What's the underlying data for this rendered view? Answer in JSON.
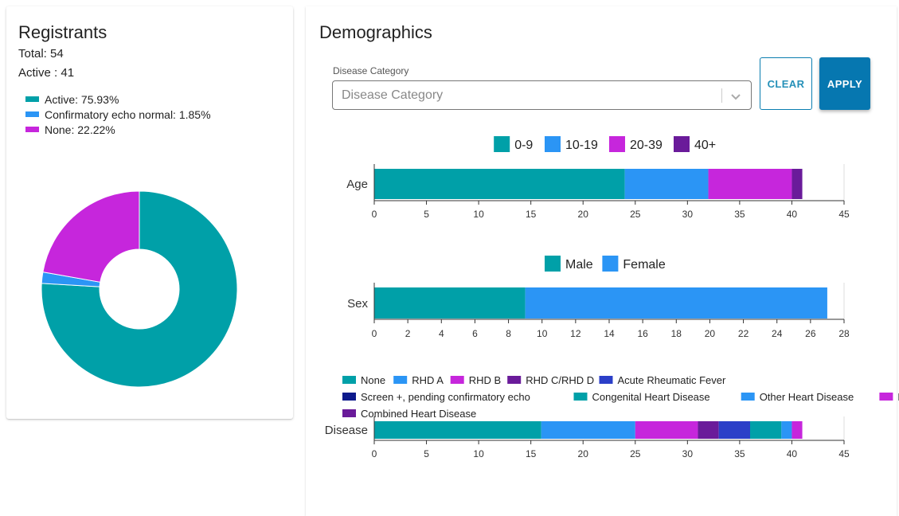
{
  "registrants": {
    "title": "Registrants",
    "total_label": "Total: 54",
    "active_label": "Active : 41",
    "legend": [
      {
        "label": "Active: 75.93%",
        "color": "#00a0a8"
      },
      {
        "label": "Confirmatory echo normal: 1.85%",
        "color": "#2b95f5"
      },
      {
        "label": "None: 22.22%",
        "color": "#c626dc"
      }
    ]
  },
  "chart_data": [
    {
      "type": "pie",
      "categories": [
        "Active",
        "Confirmatory echo normal",
        "None"
      ],
      "values": [
        75.93,
        1.85,
        22.22
      ],
      "colors": [
        "#00a0a8",
        "#2b95f5",
        "#c626dc"
      ],
      "title": ""
    },
    {
      "type": "bar",
      "orientation": "horizontal",
      "stacked": true,
      "categories": [
        "Age"
      ],
      "series": [
        {
          "name": "0-9",
          "values": [
            24
          ],
          "color": "#00a0a8"
        },
        {
          "name": "10-19",
          "values": [
            8
          ],
          "color": "#2b95f5"
        },
        {
          "name": "20-39",
          "values": [
            8
          ],
          "color": "#c626dc"
        },
        {
          "name": "40+",
          "values": [
            1
          ],
          "color": "#6a1b9a"
        }
      ],
      "xlim": [
        0,
        45
      ],
      "xticks": [
        "0",
        "5",
        "10",
        "15",
        "20",
        "25",
        "30",
        "35",
        "40",
        "45"
      ],
      "legend": "top"
    },
    {
      "type": "bar",
      "orientation": "horizontal",
      "stacked": true,
      "categories": [
        "Sex"
      ],
      "series": [
        {
          "name": "Male",
          "values": [
            9
          ],
          "color": "#00a0a8"
        },
        {
          "name": "Female",
          "values": [
            18
          ],
          "color": "#2b95f5"
        }
      ],
      "xlim": [
        0,
        28
      ],
      "xticks": [
        "0",
        "2",
        "4",
        "6",
        "8",
        "10",
        "12",
        "14",
        "16",
        "18",
        "20",
        "22",
        "24",
        "26",
        "28"
      ],
      "legend": "top"
    },
    {
      "type": "bar",
      "orientation": "horizontal",
      "stacked": true,
      "categories": [
        "Disease"
      ],
      "series": [
        {
          "name": "None",
          "values": [
            16
          ],
          "color": "#00a0a8"
        },
        {
          "name": "RHD A",
          "values": [
            9
          ],
          "color": "#2b95f5"
        },
        {
          "name": "RHD B",
          "values": [
            6
          ],
          "color": "#c626dc"
        },
        {
          "name": "RHD C/RHD D",
          "values": [
            2
          ],
          "color": "#6a1b9a"
        },
        {
          "name": "Acute Rheumatic Fever",
          "values": [
            3
          ],
          "color": "#2b3fc8"
        },
        {
          "name": "Screen +, pending confirmatory echo",
          "values": [
            0
          ],
          "color": "#0d1a8c"
        },
        {
          "name": "Congenital Heart Disease",
          "values": [
            3
          ],
          "color": "#00a0a8"
        },
        {
          "name": "Other Heart Disease",
          "values": [
            1
          ],
          "color": "#2b95f5"
        },
        {
          "name": "Normal",
          "values": [
            1
          ],
          "color": "#c626dc"
        },
        {
          "name": "Combined Heart Disease",
          "values": [
            0
          ],
          "color": "#6a1b9a"
        }
      ],
      "xlim": [
        0,
        45
      ],
      "xticks": [
        "0",
        "5",
        "10",
        "15",
        "20",
        "25",
        "30",
        "35",
        "40",
        "45"
      ],
      "legend": "top"
    }
  ],
  "demographics": {
    "title": "Demographics",
    "filter_label": "Disease Category",
    "filter_placeholder": "Disease Category",
    "clear_label": "CLEAR",
    "apply_label": "APPLY"
  }
}
